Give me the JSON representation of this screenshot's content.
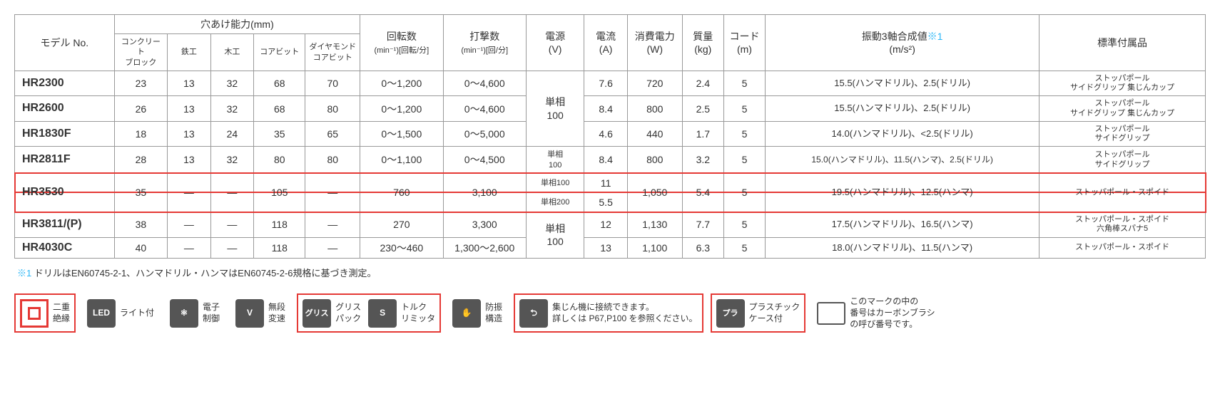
{
  "table": {
    "headers": {
      "model": "モデル No.",
      "drill_group": "穴あけ能力(mm)",
      "drill_sub": [
        "コンクリート\nブロック",
        "鉄工",
        "木工",
        "コアビット",
        "ダイヤモンド\nコアビット"
      ],
      "rpm": "回転数",
      "rpm_unit": "(min⁻¹)[回転/分]",
      "bpm": "打撃数",
      "bpm_unit": "(min⁻¹)[回/分]",
      "power": "電源\n(V)",
      "current": "電流\n(A)",
      "wattage": "消費電力\n(W)",
      "weight": "質量\n(kg)",
      "cord": "コード\n(m)",
      "vib": "振動3軸合成値",
      "vib_note": "※1",
      "vib_unit": "(m/s²)",
      "accessories": "標準付属品"
    },
    "rows": [
      {
        "model": "HR2300",
        "d": [
          "23",
          "13",
          "32",
          "68",
          "70"
        ],
        "rpm": "0～1,200",
        "bpm": "0～4,600",
        "power": "",
        "current": "7.6",
        "watt": "720",
        "wt": "2.4",
        "cord": "5",
        "vib": "15.5(ハンマドリル)、2.5(ドリル)",
        "acc": "ストッパポール\nサイドグリップ  集じんカップ"
      },
      {
        "model": "HR2600",
        "d": [
          "26",
          "13",
          "32",
          "68",
          "80"
        ],
        "rpm": "0～1,200",
        "bpm": "0～4,600",
        "power": "",
        "current": "8.4",
        "watt": "800",
        "wt": "2.5",
        "cord": "5",
        "vib": "15.5(ハンマドリル)、2.5(ドリル)",
        "acc": "ストッパポール\nサイドグリップ  集じんカップ"
      },
      {
        "model": "HR1830F",
        "d": [
          "18",
          "13",
          "24",
          "35",
          "65"
        ],
        "rpm": "0～1,500",
        "bpm": "0～5,000",
        "power": "",
        "current": "4.6",
        "watt": "440",
        "wt": "1.7",
        "cord": "5",
        "vib": "14.0(ハンマドリル)、<2.5(ドリル)",
        "acc": "ストッパポール\nサイドグリップ"
      },
      {
        "model": "HR2811F",
        "d": [
          "28",
          "13",
          "32",
          "80",
          "80"
        ],
        "rpm": "0～1,100",
        "bpm": "0～4,500",
        "power": "単相\n100",
        "current": "8.4",
        "watt": "800",
        "wt": "3.2",
        "cord": "5",
        "vib": "15.0(ハンマドリル)、11.5(ハンマ)、2.5(ドリル)",
        "acc": "ストッパポール\nサイドグリップ"
      },
      {
        "model": "HR3530",
        "d": [
          "35",
          "—",
          "—",
          "105",
          "—"
        ],
        "rpm": "760",
        "bpm": "3,100",
        "power_a": "単相100",
        "power_b": "単相200",
        "current_a": "11",
        "current_b": "5.5",
        "watt": "1,050",
        "wt": "5.4",
        "cord": "5",
        "vib": "19.5(ハンマドリル)、12.5(ハンマ)",
        "acc": "ストッパポール・スポイド",
        "highlight": true
      },
      {
        "model": "HR3811/(P)",
        "d": [
          "38",
          "—",
          "—",
          "118",
          "—"
        ],
        "rpm": "270",
        "bpm": "3,300",
        "power": "",
        "current": "12",
        "watt": "1,130",
        "wt": "7.7",
        "cord": "5",
        "vib": "17.5(ハンマドリル)、16.5(ハンマ)",
        "acc": "ストッパポール・スポイド\n六角棒スパナ5"
      },
      {
        "model": "HR4030C",
        "d": [
          "40",
          "—",
          "—",
          "118",
          "—"
        ],
        "rpm": "230～460",
        "bpm": "1,300～2,600",
        "power": "",
        "current": "13",
        "watt": "1,100",
        "wt": "6.3",
        "cord": "5",
        "vib": "18.0(ハンマドリル)、11.5(ハンマ)",
        "acc": "ストッパポール・スポイド"
      }
    ],
    "power_span1": "単相\n100",
    "power_span2": "単相\n100"
  },
  "note": {
    "mark": "※1",
    "text": "ドリルはEN60745-2-1、ハンマドリル・ハンマはEN60745-2-6規格に基づき測定。"
  },
  "legend": [
    {
      "icon": "double",
      "label": "二重\n絶縁",
      "boxed": true
    },
    {
      "icon": "LED",
      "sub": "ライト",
      "label": "ライト付"
    },
    {
      "icon": "atom",
      "label": "電子\n制御"
    },
    {
      "icon": "V",
      "label": "無段\n変速"
    },
    {
      "icon": "グリス",
      "label": "グリス\nパック",
      "boxed_group": "A"
    },
    {
      "icon": "S",
      "label": "トルク\nリミッタ",
      "boxed_group": "A"
    },
    {
      "icon": "hand",
      "label": "防振\n構造"
    },
    {
      "icon": "dust",
      "label": "集じん機に接続できます。\n詳しくは P67,P100 を参照ください。",
      "boxed": true,
      "wide": true
    },
    {
      "icon": "プラ",
      "label": "プラスチック\nケース付",
      "boxed": true
    },
    {
      "icon": "outline",
      "label": "このマークの中の\n番号はカーボンブラシ\nの呼び番号です。"
    }
  ]
}
